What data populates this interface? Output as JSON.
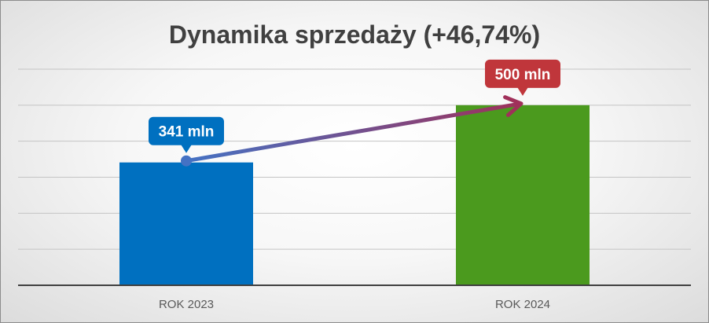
{
  "chart_data": {
    "type": "bar",
    "title": "Dynamika sprzedaży (+46,74%)",
    "categories": [
      "ROK 2023",
      "ROK 2024"
    ],
    "values": [
      341,
      500
    ],
    "data_labels": [
      "341 mln",
      "500 mln"
    ],
    "ylim": [
      0,
      600
    ],
    "grid": true,
    "legend": "none",
    "colors": {
      "bars": [
        "#0070c0",
        "#4b9a1e"
      ],
      "labels": [
        "#0070c0",
        "#c0363b"
      ],
      "arrow_start": "#4472c4",
      "arrow_end": "#a0305a"
    }
  }
}
